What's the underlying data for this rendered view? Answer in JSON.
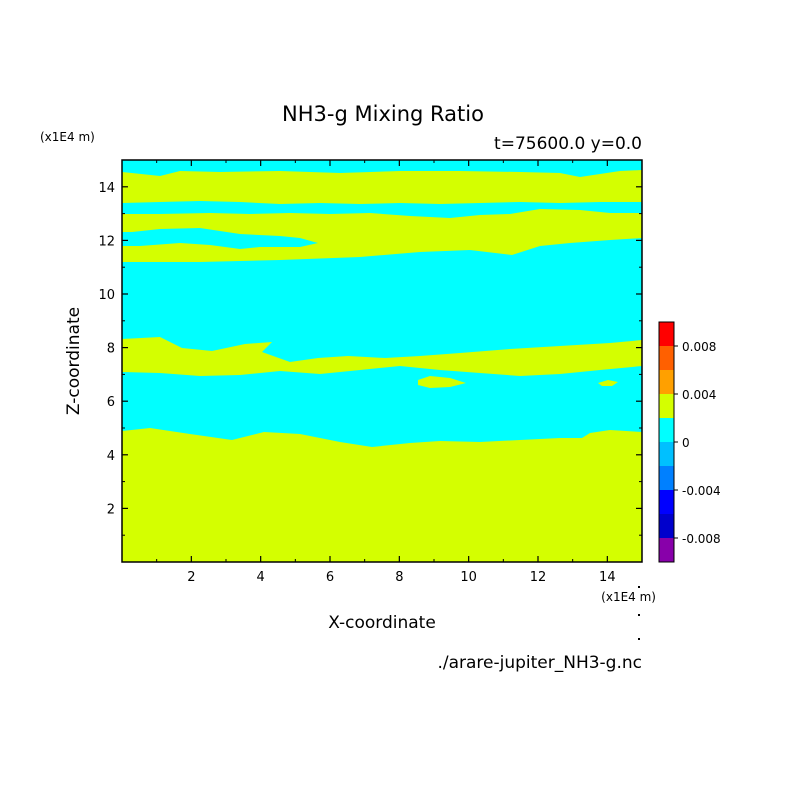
{
  "chart_data": {
    "type": "heatmap",
    "title": "NH3-g Mixing Ratio",
    "subtitle": "t=75600.0 y=0.0",
    "xlabel": "X-coordinate",
    "ylabel": "Z-coordinate",
    "x_unit": "(x1E4 m)",
    "y_unit": "(x1E4 m)",
    "xlim": [
      0,
      15
    ],
    "ylim": [
      0,
      15
    ],
    "x_ticks": [
      "2",
      "4",
      "6",
      "8",
      "10",
      "12",
      "14"
    ],
    "y_ticks": [
      "2",
      "4",
      "6",
      "8",
      "10",
      "12",
      "14"
    ],
    "x_tick_values": [
      2,
      4,
      6,
      8,
      10,
      12,
      14
    ],
    "y_tick_values": [
      2,
      4,
      6,
      8,
      10,
      12,
      14
    ],
    "colorbar": {
      "levels": [
        -0.01,
        -0.008,
        -0.006,
        -0.004,
        -0.002,
        0,
        0.002,
        0.004,
        0.006,
        0.008,
        0.01
      ],
      "colors": [
        "#8800aa",
        "#0000cc",
        "#0000ff",
        "#0080ff",
        "#00c0ff",
        "#00ffff",
        "#d4ff00",
        "#ffa000",
        "#ff6000",
        "#ff0000",
        "#ffb0b0"
      ],
      "labels": [
        "-0.008",
        "-0.004",
        "0",
        "0.004",
        "0.008"
      ],
      "label_values": [
        -0.008,
        -0.004,
        0,
        0.004,
        0.008
      ]
    },
    "regions": [
      {
        "name": "cyan",
        "value_range": [
          -0.002,
          0
        ],
        "color": "#00ffff"
      },
      {
        "name": "yellow-green",
        "value_range": [
          0,
          0.002
        ],
        "color": "#d4ff00"
      }
    ],
    "source": "./arare-jupiter_NH3-g.nc"
  }
}
